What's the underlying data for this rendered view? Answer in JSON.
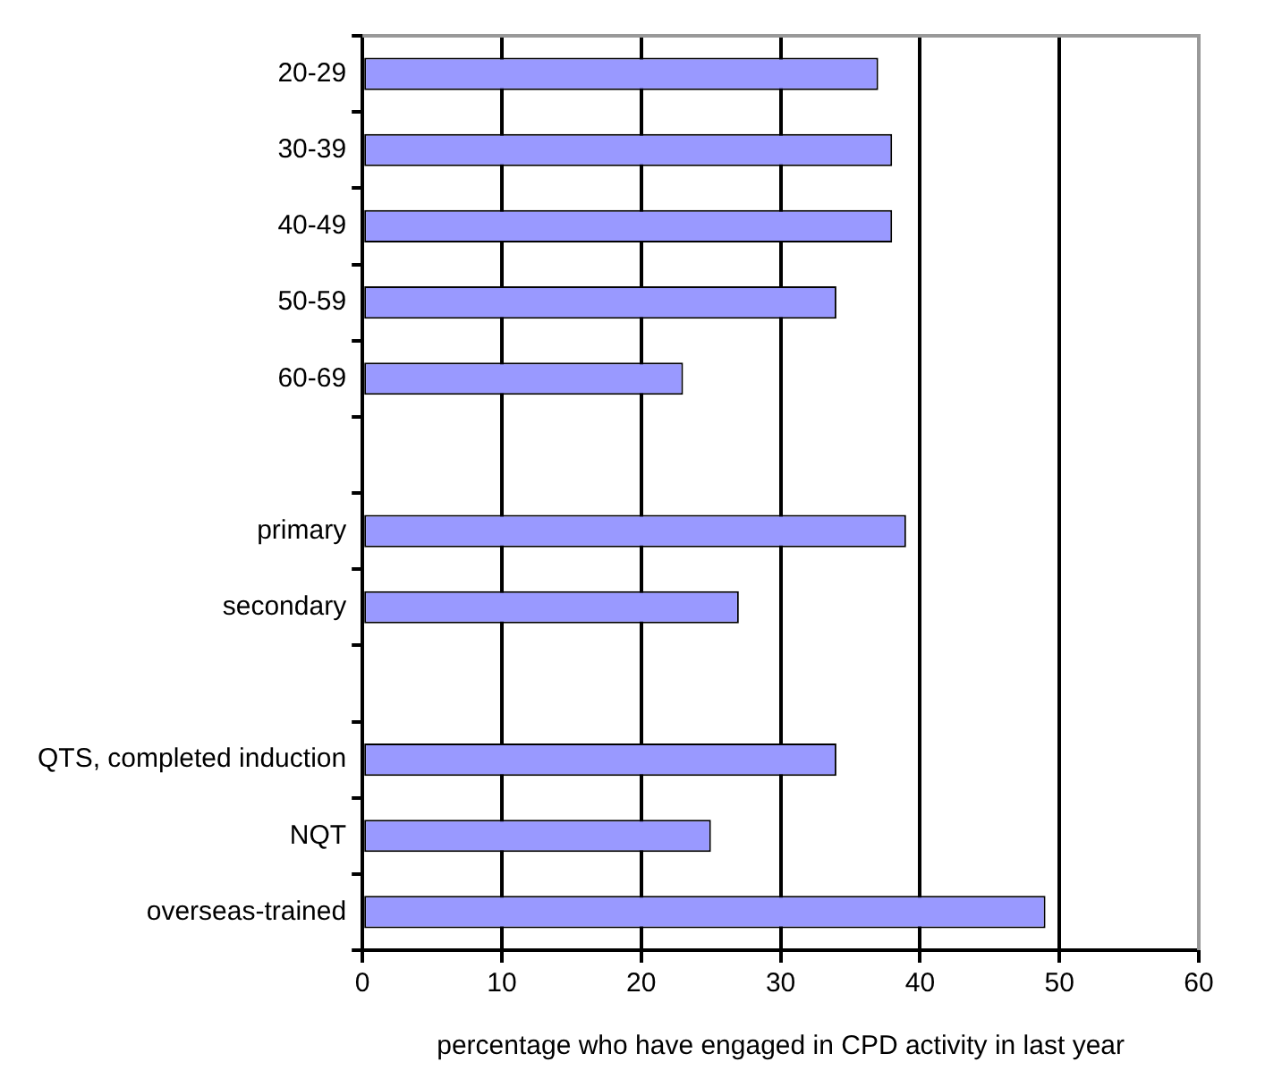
{
  "chart_data": {
    "type": "bar",
    "orientation": "horizontal",
    "xlabel": "percentage who have engaged in CPD activity in last year",
    "categories": [
      "20-29",
      "30-39",
      "40-49",
      "50-59",
      "60-69",
      null,
      "primary",
      "secondary",
      null,
      "QTS, completed induction",
      "NQT",
      "overseas-trained"
    ],
    "values": [
      37,
      38,
      38,
      34,
      23,
      null,
      39,
      27,
      null,
      34,
      25,
      49
    ],
    "color": "#9999ff",
    "xlim": [
      0,
      60
    ],
    "xticks": [
      0,
      10,
      20,
      30,
      40,
      50,
      60
    ],
    "grid": "x",
    "legend": false
  }
}
